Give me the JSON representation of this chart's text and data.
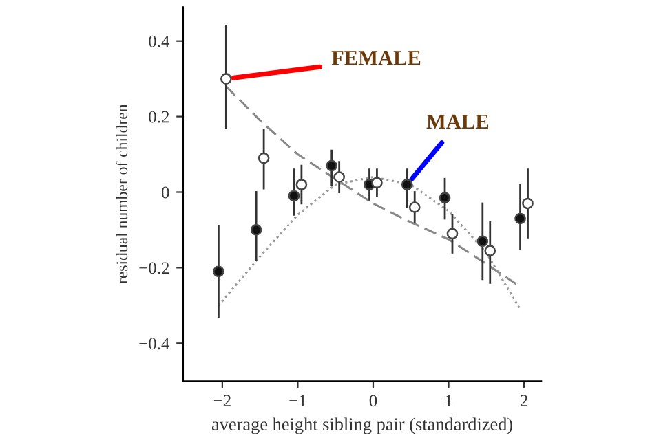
{
  "chart_data": {
    "type": "scatter",
    "xlabel": "average height sibling pair (standardized)",
    "ylabel": "residual number of children",
    "xlim": [
      -2.52,
      2.23
    ],
    "xticks": [
      {
        "value": -2,
        "label": "−2"
      },
      {
        "value": -1,
        "label": "−1"
      },
      0,
      1,
      2
    ],
    "ylim": [
      -0.5,
      0.49
    ],
    "yticks": [
      {
        "value": -0.4,
        "label": "−0.4"
      },
      {
        "value": -0.2,
        "label": "−0.2"
      },
      0,
      0.2,
      0.4
    ],
    "grid": false,
    "series": [
      {
        "type": "line",
        "color": "#888888",
        "line_style": "dashed",
        "marker": "none",
        "x": [
          -1.95,
          -1.5,
          -1.0,
          -0.5,
          0.0,
          0.5,
          1.0,
          1.5,
          1.95
        ],
        "values": [
          0.28,
          0.19,
          0.1,
          0.035,
          -0.03,
          -0.08,
          -0.125,
          -0.19,
          -0.25
        ]
      },
      {
        "type": "line",
        "color": "#999999",
        "line_style": "dotted",
        "marker": "none",
        "x": [
          -2.05,
          -1.5,
          -1.0,
          -0.5,
          0.0,
          0.5,
          1.0,
          1.5,
          1.95
        ],
        "values": [
          -0.3,
          -0.17,
          -0.06,
          0.02,
          0.04,
          0.02,
          -0.05,
          -0.16,
          -0.31
        ]
      },
      {
        "color": "#111111",
        "marker": "circle",
        "x": [
          -2.05,
          -1.55,
          -1.05,
          -0.55,
          -0.05,
          0.45,
          0.95,
          1.45,
          1.95
        ],
        "values": [
          -0.21,
          -0.1,
          -0.01,
          0.07,
          0.02,
          0.02,
          -0.015,
          -0.13,
          -0.07
        ],
        "errors": [
          [
            -0.33,
            -0.09
          ],
          [
            -0.18,
            0.0
          ],
          [
            -0.06,
            0.06
          ],
          [
            0.02,
            0.11
          ],
          [
            -0.02,
            0.06
          ],
          [
            -0.04,
            0.06
          ],
          [
            -0.07,
            0.035
          ],
          [
            -0.23,
            -0.03
          ],
          [
            -0.15,
            0.02
          ]
        ]
      },
      {
        "color": "#ffffff",
        "marker": "circle",
        "x": [
          -1.95,
          -1.45,
          -0.95,
          -0.45,
          0.05,
          0.55,
          1.05,
          1.55,
          2.05
        ],
        "values": [
          0.3,
          0.09,
          0.02,
          0.04,
          0.025,
          -0.04,
          -0.11,
          -0.155,
          -0.03
        ],
        "errors": [
          [
            0.17,
            0.44
          ],
          [
            0.01,
            0.165
          ],
          [
            -0.03,
            0.07
          ],
          [
            0.0,
            0.08
          ],
          [
            -0.01,
            0.06
          ],
          [
            -0.08,
            0.0
          ],
          [
            -0.16,
            -0.06
          ],
          [
            -0.24,
            -0.08
          ],
          [
            -0.12,
            0.06
          ]
        ]
      }
    ],
    "annotations": [
      {
        "text": "FEMALE",
        "x": -1.95,
        "y": 0.3
      },
      {
        "text": "MALE",
        "x": 0.45,
        "y": 0.02
      }
    ]
  }
}
